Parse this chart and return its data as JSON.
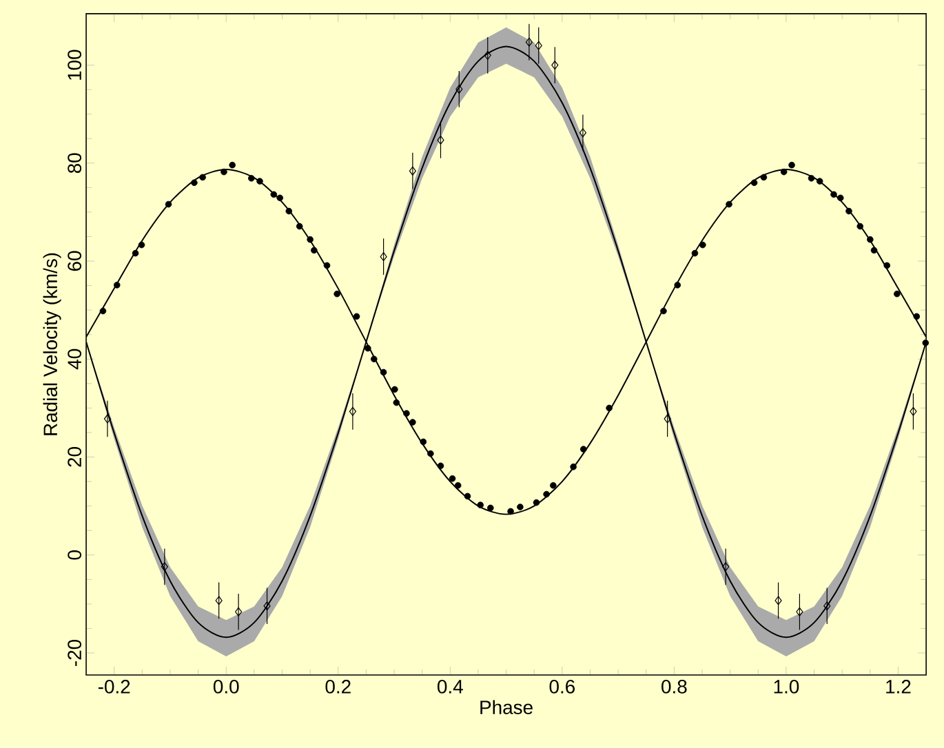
{
  "chart_data": {
    "type": "scatter",
    "xlabel": "Phase",
    "ylabel": "Radial Velocity (km/s)",
    "xlim": [
      -0.25,
      1.25
    ],
    "ylim": [
      -24.5,
      110.5
    ],
    "xticks": [
      -0.2,
      {
        "value": 0,
        "label": "0.0"
      },
      0.2,
      0.4,
      0.6,
      0.8,
      {
        "value": 1,
        "label": "1.0"
      },
      1.2
    ],
    "yticks": [
      -20,
      0,
      20,
      40,
      60,
      80,
      100
    ],
    "series": [
      {
        "type": "line",
        "color": "#000000",
        "line_style": "solid",
        "marker": "none",
        "x": [
          -0.25,
          -0.2,
          -0.15,
          -0.1,
          -0.05,
          0,
          0.05,
          0.1,
          0.15,
          0.2,
          0.25,
          0.3,
          0.35,
          0.4,
          0.45,
          0.5,
          0.55,
          0.6,
          0.65,
          0.7,
          0.75,
          0.8,
          0.85,
          0.9,
          0.95,
          1.0,
          1.05,
          1.1,
          1.15,
          1.2,
          1.25
        ],
        "values": [
          43.5,
          24.9,
          8.0,
          -5.3,
          -13.8,
          -16.8,
          -13.8,
          -5.3,
          8.0,
          24.9,
          43.5,
          62.1,
          79.0,
          92.3,
          100.8,
          103.8,
          100.8,
          92.3,
          79.0,
          62.1,
          43.5,
          24.9,
          8.0,
          -5.3,
          -13.8,
          -16.8,
          -13.8,
          -5.3,
          8.0,
          24.9,
          43.5
        ],
        "lower": [
          43.5,
          23.7,
          5.7,
          -8.4,
          -17.6,
          -20.7,
          -17.6,
          -8.4,
          5.7,
          23.7,
          43.5,
          61.0,
          76.9,
          89.5,
          97.5,
          100.3,
          97.5,
          89.5,
          76.9,
          61.0,
          43.5,
          23.7,
          5.7,
          -8.4,
          -17.6,
          -20.7,
          -17.6,
          -8.4,
          5.7,
          23.7,
          43.5
        ],
        "upper": [
          43.5,
          26.0,
          10.1,
          -2.5,
          -10.5,
          -13.3,
          -10.5,
          -2.5,
          10.1,
          26.0,
          43.5,
          63.3,
          81.3,
          95.4,
          104.6,
          107.7,
          104.6,
          95.4,
          81.3,
          63.3,
          43.5,
          26.0,
          10.1,
          -2.5,
          -10.5,
          -13.3,
          -10.5,
          -2.5,
          10.1,
          26.0,
          43.5
        ]
      },
      {
        "type": "line",
        "color": "#000000",
        "line_style": "solid",
        "marker": "none",
        "x": [
          -0.25,
          -0.2,
          -0.15,
          -0.1,
          -0.05,
          0,
          0.05,
          0.1,
          0.15,
          0.2,
          0.25,
          0.3,
          0.35,
          0.4,
          0.45,
          0.5,
          0.55,
          0.6,
          0.65,
          0.7,
          0.75,
          0.8,
          0.85,
          0.9,
          0.95,
          1.0,
          1.05,
          1.1,
          1.15,
          1.2,
          1.25
        ],
        "values": [
          44.5,
          54.4,
          64.2,
          72.0,
          77.0,
          78.7,
          77.0,
          72.0,
          64.2,
          54.4,
          43.5,
          32.6,
          22.8,
          15.0,
          10.0,
          8.3,
          10.0,
          15.0,
          22.8,
          32.6,
          43.5,
          54.4,
          64.2,
          72.0,
          77.0,
          78.7,
          77.0,
          72.0,
          64.2,
          54.4,
          44.5
        ]
      },
      {
        "color": "#000000",
        "marker": "circle",
        "x": [
          -0.22,
          -0.195,
          -0.162,
          -0.151,
          -0.103,
          -0.057,
          -0.042,
          -0.004,
          0.011,
          0.045,
          0.06,
          0.085,
          0.096,
          0.112,
          0.131,
          0.15,
          0.157,
          0.18,
          0.198,
          0.233,
          0.253,
          0.264,
          0.281,
          0.301,
          0.304,
          0.322,
          0.333,
          0.352,
          0.365,
          0.383,
          0.404,
          0.414,
          0.431,
          0.454,
          0.472,
          0.508,
          0.525,
          0.554,
          0.572,
          0.584,
          0.62,
          0.638,
          0.684,
          0.781,
          0.806,
          0.837,
          0.851,
          0.898,
          0.943,
          0.96,
          0.996,
          1.01,
          1.045,
          1.06,
          1.085,
          1.097,
          1.112,
          1.132,
          1.15,
          1.157,
          1.18,
          1.198,
          1.233,
          1.249
        ],
        "values": [
          49.8,
          55.1,
          61.6,
          63.3,
          71.6,
          76.0,
          77.1,
          78.2,
          79.6,
          76.9,
          76.3,
          73.6,
          72.9,
          70.2,
          67.1,
          64.4,
          62.2,
          59.1,
          53.3,
          48.7,
          42.2,
          40.0,
          37.3,
          33.8,
          31.1,
          28.9,
          27.1,
          23.1,
          20.7,
          18.2,
          15.6,
          14.2,
          12.0,
          10.2,
          9.6,
          8.9,
          9.8,
          10.7,
          12.4,
          14.2,
          18.0,
          21.6,
          30.0,
          49.8,
          55.1,
          61.6,
          63.3,
          71.6,
          76.0,
          77.1,
          78.2,
          79.6,
          76.9,
          76.3,
          73.6,
          72.9,
          70.2,
          67.1,
          64.4,
          62.2,
          59.1,
          53.3,
          48.7,
          43.3
        ]
      },
      {
        "color": "#000000",
        "marker": "diamond",
        "x": [
          -0.212,
          -0.11,
          -0.013,
          0.022,
          0.073,
          0.226,
          0.281,
          0.333,
          0.383,
          0.416,
          0.467,
          0.541,
          0.558,
          0.587,
          0.637,
          0.788,
          0.892,
          0.986,
          1.024,
          1.073,
          1.227
        ],
        "values": [
          27.8,
          -2.4,
          -9.3,
          -11.6,
          -10.4,
          29.3,
          60.9,
          78.4,
          84.7,
          95.1,
          102.0,
          104.7,
          104.0,
          100.0,
          86.2,
          27.8,
          -2.4,
          -9.3,
          -11.6,
          -10.4,
          29.3
        ],
        "errors": [
          3.7,
          3.7,
          3.7,
          3.7,
          3.7,
          3.7,
          3.7,
          3.7,
          3.7,
          3.7,
          3.7,
          3.7,
          3.7,
          3.7,
          3.7,
          3.7,
          3.7,
          3.7,
          3.7,
          3.7,
          3.7
        ]
      }
    ]
  }
}
